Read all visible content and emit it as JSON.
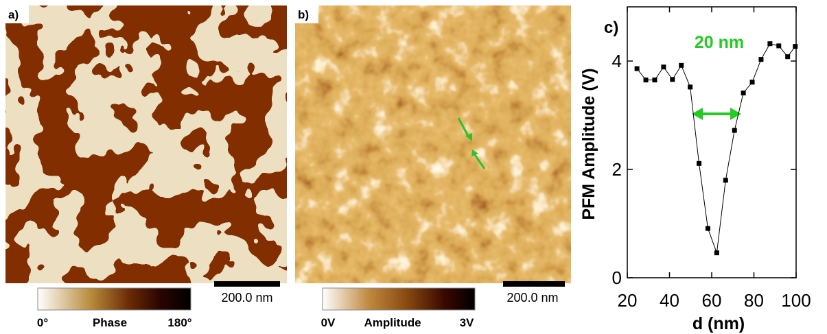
{
  "panels": [
    {
      "label": "a)",
      "scale_bar": "200.0 nm",
      "colorbar": {
        "min_label": "0°",
        "title": "Phase",
        "max_label": "180°"
      }
    },
    {
      "label": "b)",
      "scale_bar": "200.0 nm",
      "colorbar": {
        "min_label": "0V",
        "title": "Amplitude",
        "max_label": "3V"
      }
    }
  ],
  "chart_data": {
    "type": "line",
    "label": "c)",
    "annotation": "20 nm",
    "x_label": "d (nm)",
    "y_label": "PFM Amplitude (V)",
    "x": [
      24.6,
      28.8,
      33.0,
      37.2,
      41.4,
      45.6,
      49.8,
      54.0,
      58.2,
      62.4,
      66.6,
      70.8,
      75.0,
      79.2,
      83.4,
      87.6,
      91.8,
      96.0,
      99.6
    ],
    "series": [
      {
        "color": "#000000",
        "values": [
          3.86,
          3.65,
          3.65,
          3.89,
          3.66,
          3.92,
          3.52,
          2.11,
          0.91,
          0.46,
          1.8,
          2.72,
          3.41,
          3.61,
          4.03,
          4.32,
          4.28,
          4.08,
          4.27
        ]
      }
    ],
    "xlim": [
      20,
      100
    ],
    "ylim": [
      0,
      5
    ],
    "xticks": [
      20,
      40,
      60,
      80,
      100
    ],
    "yticks": [
      0,
      2,
      4
    ]
  }
}
